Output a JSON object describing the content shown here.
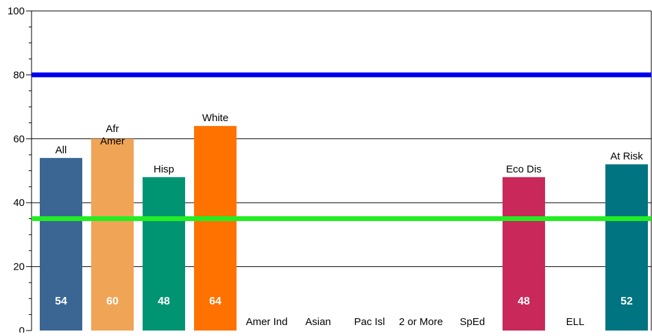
{
  "chart_data": {
    "type": "bar",
    "categories": [
      "All",
      "Afr Amer",
      "Hisp",
      "White",
      "Amer Ind",
      "Asian",
      "Pac Isl",
      "2 or More",
      "SpEd",
      "Eco Dis",
      "ELL",
      "At Risk"
    ],
    "values": [
      54,
      60,
      48,
      64,
      null,
      null,
      null,
      null,
      null,
      48,
      null,
      52
    ],
    "value_labels": [
      "54",
      "60",
      "48",
      "64",
      "",
      "",
      "",
      "",
      "",
      "48",
      "",
      "52"
    ],
    "colors": [
      "#3b6694",
      "#f0a456",
      "#009473",
      "#ff7200",
      null,
      null,
      null,
      null,
      null,
      "#c9285a",
      null,
      "#007480"
    ],
    "ylim": [
      0,
      100
    ],
    "yticks": [
      0,
      20,
      40,
      60,
      80,
      100
    ],
    "y_minor_step": 5,
    "gridlines": [
      60,
      40,
      20
    ],
    "reference_lines": [
      {
        "value": 80,
        "color": "#0000ee"
      },
      {
        "value": 35,
        "color": "#22ee22"
      }
    ],
    "grid": true
  }
}
